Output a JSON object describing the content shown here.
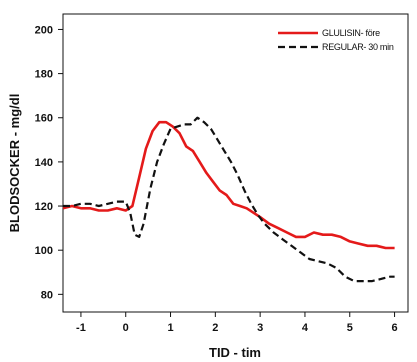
{
  "chart_data": {
    "type": "line",
    "xlabel": "TID - tim",
    "ylabel": "BLODSOCKER - mg/dl",
    "xlim": [
      -1.4,
      6.3
    ],
    "ylim": [
      72,
      207
    ],
    "xticks": [
      -1,
      0,
      1,
      2,
      3,
      4,
      5,
      6
    ],
    "yticks": [
      80,
      100,
      120,
      140,
      160,
      180,
      200
    ],
    "grid": false,
    "legend": "top-right",
    "series": [
      {
        "name": "GLULISIN- före",
        "color": "#e41a1a",
        "dash": "solid",
        "x": [
          -1.4,
          -1.2,
          -1.0,
          -0.8,
          -0.6,
          -0.4,
          -0.2,
          0.0,
          0.15,
          0.3,
          0.45,
          0.6,
          0.75,
          0.9,
          1.05,
          1.2,
          1.35,
          1.5,
          1.65,
          1.8,
          1.95,
          2.1,
          2.25,
          2.4,
          2.55,
          2.7,
          2.85,
          3.0,
          3.2,
          3.4,
          3.6,
          3.8,
          4.0,
          4.2,
          4.4,
          4.6,
          4.8,
          5.0,
          5.2,
          5.4,
          5.6,
          5.8,
          6.0
        ],
        "y": [
          119,
          120,
          119,
          119,
          118,
          118,
          119,
          118,
          120,
          133,
          146,
          154,
          158,
          158,
          156,
          153,
          147,
          145,
          140,
          135,
          131,
          127,
          125,
          121,
          120,
          119,
          117,
          115,
          112,
          110,
          108,
          106,
          106,
          108,
          107,
          107,
          106,
          104,
          103,
          102,
          102,
          101,
          101
        ]
      },
      {
        "name": "REGULAR- 30 min",
        "color": "#111111",
        "dash": "dashed",
        "x": [
          -1.4,
          -1.2,
          -1.0,
          -0.8,
          -0.6,
          -0.4,
          -0.2,
          0.0,
          0.1,
          0.2,
          0.3,
          0.4,
          0.55,
          0.7,
          0.85,
          1.0,
          1.15,
          1.3,
          1.45,
          1.6,
          1.75,
          1.9,
          2.05,
          2.2,
          2.35,
          2.5,
          2.65,
          2.8,
          2.95,
          3.1,
          3.3,
          3.5,
          3.7,
          3.9,
          4.1,
          4.3,
          4.5,
          4.7,
          4.9,
          5.1,
          5.3,
          5.5,
          5.7,
          5.9,
          6.0
        ],
        "y": [
          120,
          120,
          121,
          121,
          120,
          121,
          122,
          122,
          117,
          107,
          106,
          112,
          128,
          140,
          148,
          155,
          156,
          157,
          157,
          160,
          158,
          155,
          150,
          145,
          140,
          134,
          127,
          121,
          116,
          112,
          108,
          105,
          102,
          99,
          96,
          95,
          94,
          92,
          88,
          86,
          86,
          86,
          87,
          88,
          88
        ]
      }
    ]
  }
}
